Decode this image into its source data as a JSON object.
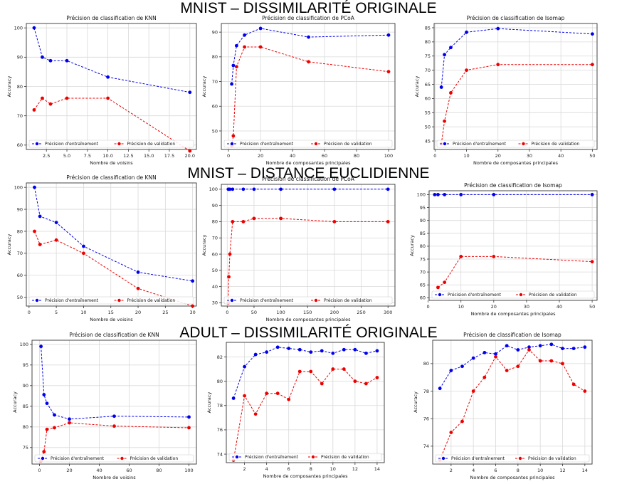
{
  "sections": [
    {
      "title": "MNIST – DISSIMILARITÉ ORIGINALE"
    },
    {
      "title": "MNIST – DISTANCE EUCLIDIENNE"
    },
    {
      "title": "ADULT – DISSIMILARITÉ ORIGINALE"
    }
  ],
  "colors": {
    "train": "#0000ee",
    "val": "#ee0000",
    "grid": "#d9d9d9",
    "axis": "#333333"
  },
  "chart_data": [
    {
      "type": "line",
      "title": "Précision de classification de KNN",
      "xlabel": "Nombre de voisins",
      "ylabel": "Accuracy",
      "xlim": [
        0.05,
        20.8
      ],
      "ylim": [
        58.5,
        101.5
      ],
      "xticks": [
        2.5,
        5.0,
        7.5,
        10.0,
        12.5,
        15.0,
        17.5,
        20.0
      ],
      "xtick_labels": [
        "2.5",
        "5.0",
        "7.5",
        "10.0",
        "12.5",
        "15.0",
        "17.5",
        "20.0"
      ],
      "yticks": [
        60,
        70,
        80,
        90,
        100
      ],
      "grid": true,
      "legend_position": "bottom",
      "series": [
        {
          "name": "Précision d'entraînement",
          "x": [
            1,
            2,
            3,
            5,
            10,
            20
          ],
          "y": [
            100,
            90,
            88.8,
            88.8,
            83.2,
            78
          ]
        },
        {
          "name": "Précision de validation",
          "x": [
            1,
            2,
            3,
            5,
            10,
            20
          ],
          "y": [
            72,
            76,
            74,
            76,
            76,
            58
          ]
        }
      ]
    },
    {
      "type": "line",
      "title": "Précision de classification de PCoA",
      "xlabel": "Nombre de composantes principales",
      "ylabel": "Accuracy",
      "xlim": [
        -4.5,
        104
      ],
      "ylim": [
        42.5,
        93.5
      ],
      "xticks": [
        0,
        20,
        40,
        60,
        80,
        100
      ],
      "xtick_labels": [
        "0",
        "20",
        "40",
        "60",
        "80",
        "100"
      ],
      "yticks": [
        50,
        60,
        70,
        80,
        90
      ],
      "grid": true,
      "legend_position": "bottom",
      "series": [
        {
          "name": "Précision d'entraînement",
          "x": [
            2,
            3,
            5,
            10,
            20,
            50,
            100
          ],
          "y": [
            69,
            76.5,
            84.5,
            88.8,
            91.5,
            88,
            88.8
          ]
        },
        {
          "name": "Précision de validation",
          "x": [
            2,
            3,
            5,
            10,
            20,
            50,
            100
          ],
          "y": [
            44,
            48,
            76,
            84,
            84,
            78,
            74
          ]
        }
      ]
    },
    {
      "type": "line",
      "title": "Précision de classification de Isomap",
      "xlabel": "Nombre de composantes principales",
      "ylabel": "Accuracy",
      "xlim": [
        -0.3,
        51.5
      ],
      "ylim": [
        42,
        86.5
      ],
      "xticks": [
        0,
        10,
        20,
        30,
        40,
        50
      ],
      "xtick_labels": [
        "0",
        "10",
        "20",
        "30",
        "40",
        "50"
      ],
      "yticks": [
        45,
        50,
        55,
        60,
        65,
        70,
        75,
        80,
        85
      ],
      "grid": true,
      "legend_position": "bottom",
      "series": [
        {
          "name": "Précision d'entraînement",
          "x": [
            2,
            3,
            5,
            10,
            20,
            50
          ],
          "y": [
            64,
            75.5,
            78,
            83.4,
            84.7,
            82.8
          ]
        },
        {
          "name": "Précision de validation",
          "x": [
            2,
            3,
            5,
            10,
            20,
            50
          ],
          "y": [
            44,
            52,
            62,
            70,
            72,
            72
          ]
        }
      ]
    },
    {
      "type": "line",
      "title": "Précision de classification de KNN",
      "xlabel": "Nombre de voisins",
      "ylabel": "Accuracy",
      "xlim": [
        -0.5,
        30.7
      ],
      "ylim": [
        46,
        102
      ],
      "xticks": [
        0,
        5,
        10,
        15,
        20,
        25,
        30
      ],
      "xtick_labels": [
        "0",
        "5",
        "10",
        "15",
        "20",
        "25",
        "30"
      ],
      "yticks": [
        50,
        60,
        70,
        80,
        90,
        100
      ],
      "grid": true,
      "legend_position": "bottom",
      "series": [
        {
          "name": "Précision d'entraînement",
          "x": [
            1,
            2,
            5,
            10,
            20,
            30
          ],
          "y": [
            100,
            86.8,
            84,
            73.2,
            61.4,
            57.4
          ]
        },
        {
          "name": "Précision de validation",
          "x": [
            1,
            2,
            5,
            10,
            20,
            30
          ],
          "y": [
            80,
            74,
            76,
            70,
            54,
            46
          ]
        }
      ]
    },
    {
      "type": "line",
      "title": "Précision de classification de PCoA",
      "xlabel": "Nombre de composantes principales",
      "ylabel": "Accuracy",
      "xlim": [
        -11,
        313
      ],
      "ylim": [
        28,
        103
      ],
      "xticks": [
        0,
        50,
        100,
        150,
        200,
        250,
        300
      ],
      "xtick_labels": [
        "0",
        "50",
        "100",
        "150",
        "200",
        "250",
        "300"
      ],
      "yticks": [
        30,
        40,
        50,
        60,
        70,
        80,
        90,
        100
      ],
      "grid": true,
      "legend_position": "bottom",
      "series": [
        {
          "name": "Précision d'entraînement",
          "x": [
            2,
            3,
            5,
            10,
            30,
            50,
            100,
            200,
            300
          ],
          "y": [
            100,
            100,
            100,
            100,
            100,
            100,
            100,
            100,
            100
          ]
        },
        {
          "name": "Précision de validation",
          "x": [
            2,
            3,
            5,
            10,
            30,
            50,
            100,
            200,
            300
          ],
          "y": [
            30,
            46,
            60,
            80,
            80,
            82,
            82,
            80,
            80
          ]
        }
      ]
    },
    {
      "type": "line",
      "title": "Précision de classification de Isomap",
      "xlabel": "Nombre de composantes principales",
      "ylabel": "Accuracy",
      "xlim": [
        0.3,
        51.5
      ],
      "ylim": [
        59,
        101.5
      ],
      "xticks": [
        0,
        10,
        20,
        30,
        40,
        50
      ],
      "xtick_labels": [
        "0",
        "10",
        "20",
        "30",
        "40",
        "50"
      ],
      "yticks": [
        60,
        65,
        70,
        75,
        80,
        85,
        90,
        95,
        100
      ],
      "grid": true,
      "legend_position": "bottom",
      "series": [
        {
          "name": "Précision d'entraînement",
          "x": [
            2,
            3,
            5,
            10,
            20,
            50
          ],
          "y": [
            100,
            100,
            100,
            100,
            100,
            100
          ]
        },
        {
          "name": "Précision de validation",
          "x": [
            2,
            3,
            5,
            10,
            20,
            50
          ],
          "y": [
            null,
            64,
            66,
            76,
            76,
            74
          ]
        }
      ]
    },
    {
      "type": "line",
      "title": "Précision de classification de KNN",
      "xlabel": "Nombre de voisins",
      "ylabel": "Accuracy",
      "xlim": [
        -5,
        105
      ],
      "ylim": [
        71,
        101
      ],
      "xticks": [
        0,
        20,
        40,
        60,
        80,
        100
      ],
      "xtick_labels": [
        "0",
        "20",
        "40",
        "60",
        "80",
        "100"
      ],
      "yticks": [
        75,
        80,
        85,
        90,
        95,
        100
      ],
      "grid": true,
      "legend_position": "bottom",
      "series": [
        {
          "name": "Précision d'entraînement",
          "x": [
            1,
            3,
            5,
            10,
            20,
            50,
            100
          ],
          "y": [
            99.5,
            87.8,
            85.7,
            82.9,
            81.9,
            82.6,
            82.4
          ]
        },
        {
          "name": "Précision de validation",
          "x": [
            1,
            3,
            5,
            10,
            20,
            50,
            100
          ],
          "y": [
            71.8,
            74,
            79.4,
            79.8,
            81,
            80.2,
            79.8
          ]
        }
      ]
    },
    {
      "type": "line",
      "title": "",
      "xlabel": "Nombre de composantes principales",
      "ylabel": "Accuracy",
      "xlim": [
        0.35,
        14.65
      ],
      "ylim": [
        73.3,
        83.2
      ],
      "xticks": [
        2,
        4,
        6,
        8,
        10,
        12,
        14
      ],
      "xtick_labels": [
        "2",
        "4",
        "6",
        "8",
        "10",
        "12",
        "14"
      ],
      "yticks": [
        74,
        76,
        78,
        80,
        82
      ],
      "grid": true,
      "legend_position": "bottom",
      "series": [
        {
          "name": "Précision d'entraînement",
          "x": [
            1,
            2,
            3,
            4,
            5,
            6,
            7,
            8,
            9,
            10,
            11,
            12,
            13,
            14
          ],
          "y": [
            78.6,
            81.2,
            82.2,
            82.4,
            82.8,
            82.7,
            82.6,
            82.4,
            82.5,
            82.3,
            82.6,
            82.6,
            82.3,
            82.5
          ]
        },
        {
          "name": "Précision de validation",
          "x": [
            1,
            2,
            3,
            4,
            5,
            6,
            7,
            8,
            9,
            10,
            11,
            12,
            13,
            14
          ],
          "y": [
            73.5,
            78.8,
            77.3,
            79,
            79,
            78.5,
            80.8,
            80.8,
            79.8,
            81,
            81,
            80,
            79.8,
            80.3
          ]
        }
      ]
    },
    {
      "type": "line",
      "title": "Précision de classification de Isomap",
      "xlabel": "Nombre de composantes principales",
      "ylabel": "Accuracy",
      "xlim": [
        0.35,
        14.65
      ],
      "ylim": [
        72.7,
        81.7
      ],
      "xticks": [
        2,
        4,
        6,
        8,
        10,
        12,
        14
      ],
      "xtick_labels": [
        "2",
        "4",
        "6",
        "8",
        "10",
        "12",
        "14"
      ],
      "yticks": [
        74,
        76,
        78,
        80
      ],
      "grid": true,
      "legend_position": "bottom",
      "series": [
        {
          "name": "Précision d'entraînement",
          "x": [
            1,
            2,
            3,
            4,
            5,
            6,
            7,
            8,
            9,
            10,
            11,
            12,
            13,
            14
          ],
          "y": [
            78.2,
            79.5,
            79.8,
            80.4,
            80.8,
            80.7,
            81.3,
            81,
            81.2,
            81.3,
            81.4,
            81.1,
            81.1,
            81.2
          ]
        },
        {
          "name": "Précision de validation",
          "x": [
            1,
            2,
            3,
            4,
            5,
            6,
            7,
            8,
            9,
            10,
            11,
            12,
            13,
            14
          ],
          "y": [
            73,
            75,
            75.8,
            78,
            79,
            80.5,
            79.5,
            79.8,
            81,
            80.2,
            80.2,
            80,
            78.5,
            78
          ]
        }
      ]
    }
  ]
}
